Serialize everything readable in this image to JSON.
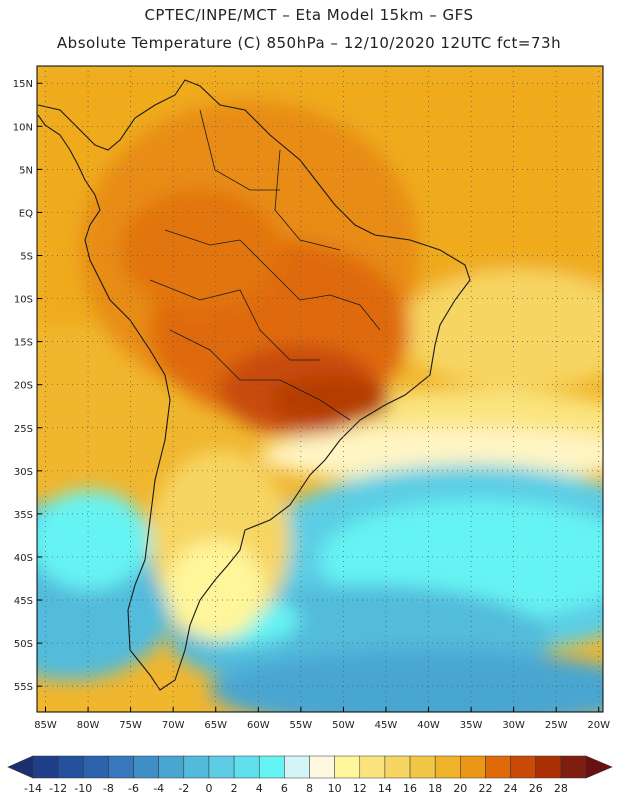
{
  "header": {
    "line1": "CPTEC/INPE/MCT –   Eta Model 15km – GFS",
    "line2": "Absolute Temperature (C) 850hPa – 12/10/2020 12UTC fct=73h"
  },
  "map": {
    "lat_labels": [
      "15N",
      "10N",
      "5N",
      "EQ",
      "5S",
      "10S",
      "15S",
      "20S",
      "25S",
      "30S",
      "35S",
      "40S",
      "45S",
      "50S",
      "55S"
    ],
    "lat_values": [
      15,
      10,
      5,
      0,
      -5,
      -10,
      -15,
      -20,
      -25,
      -30,
      -35,
      -40,
      -45,
      -50,
      -55
    ],
    "lon_labels": [
      "85W",
      "80W",
      "75W",
      "70W",
      "65W",
      "60W",
      "55W",
      "50W",
      "45W",
      "40W",
      "35W",
      "30W",
      "25W",
      "20W"
    ],
    "lon_values": [
      -85,
      -80,
      -75,
      -70,
      -65,
      -60,
      -55,
      -50,
      -45,
      -40,
      -35,
      -30,
      -25,
      -20
    ],
    "extent": {
      "lon_min": -86,
      "lon_max": -19.5,
      "lat_min": -58,
      "lat_max": 17
    }
  },
  "colorbar": {
    "labels": [
      "-14",
      "-12",
      "-10",
      "-8",
      "-6",
      "-4",
      "-2",
      "0",
      "2",
      "4",
      "6",
      "8",
      "10",
      "12",
      "14",
      "16",
      "18",
      "20",
      "22",
      "24",
      "26",
      "28"
    ],
    "colors": [
      "#1f3f8a",
      "#25509c",
      "#2d63ad",
      "#3678bb",
      "#3f8fc6",
      "#49a6d1",
      "#52bbdb",
      "#5ccde4",
      "#60dfec",
      "#66f3f3",
      "#d4f5f7",
      "#fff8e0",
      "#fff59a",
      "#fbe47f",
      "#f7d562",
      "#f2c647",
      "#efb32a",
      "#ea9616",
      "#e06a0a",
      "#c94a06",
      "#ab3105",
      "#7e1d10"
    ],
    "under_color": "#1b2f70",
    "over_color": "#6b1010"
  }
}
